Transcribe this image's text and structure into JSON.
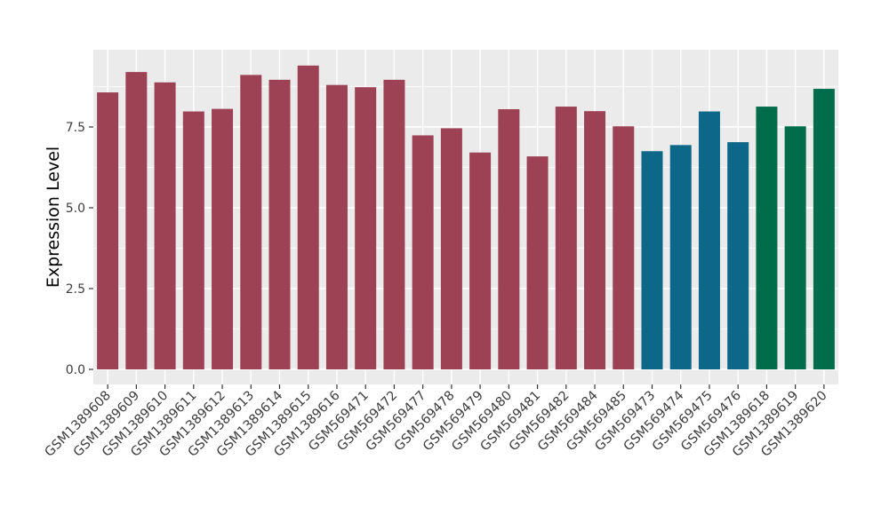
{
  "figure": {
    "background": "#FFFFFF",
    "panel_background": "#EBEBEB",
    "grid_color": "#FFFFFF",
    "tick_color": "#333333",
    "axis_text_color": "#3D3D3D",
    "axis_title_color": "#000000"
  },
  "chart_data": {
    "type": "bar",
    "title": "",
    "xlabel": "",
    "ylabel": "Expression Level",
    "legend_position": "none",
    "grid": "on",
    "categories": [
      "GSM1389608",
      "GSM1389609",
      "GSM1389610",
      "GSM1389611",
      "GSM1389612",
      "GSM1389613",
      "GSM1389614",
      "GSM1389615",
      "GSM1389616",
      "GSM569471",
      "GSM569472",
      "GSM569477",
      "GSM569478",
      "GSM569479",
      "GSM569480",
      "GSM569481",
      "GSM569482",
      "GSM569484",
      "GSM569485",
      "GSM569473",
      "GSM569474",
      "GSM569475",
      "GSM569476",
      "GSM1389618",
      "GSM1389619",
      "GSM1389620"
    ],
    "values": [
      8.57,
      9.2,
      8.88,
      7.98,
      8.06,
      9.11,
      8.96,
      9.4,
      8.8,
      8.73,
      8.96,
      7.24,
      7.46,
      6.71,
      8.05,
      6.59,
      8.13,
      7.99,
      7.52,
      6.75,
      6.94,
      7.98,
      7.03,
      8.13,
      7.52,
      8.68
    ],
    "groups": [
      "crimson",
      "crimson",
      "crimson",
      "crimson",
      "crimson",
      "crimson",
      "crimson",
      "crimson",
      "crimson",
      "crimson",
      "crimson",
      "crimson",
      "crimson",
      "crimson",
      "crimson",
      "crimson",
      "crimson",
      "crimson",
      "crimson",
      "blue",
      "blue",
      "blue",
      "blue",
      "green",
      "green",
      "green"
    ],
    "group_colors": {
      "crimson": "#9C4254",
      "blue": "#0C6788",
      "green": "#006C49"
    },
    "yticks": [
      0,
      2.5,
      5,
      7.5
    ],
    "ytick_labels": [
      "0.0",
      "2.5",
      "5.0",
      "7.5"
    ],
    "minor_gridlines": [
      1.25,
      3.75,
      6.25,
      8.75
    ],
    "ylim": [
      -0.47,
      9.88
    ]
  }
}
